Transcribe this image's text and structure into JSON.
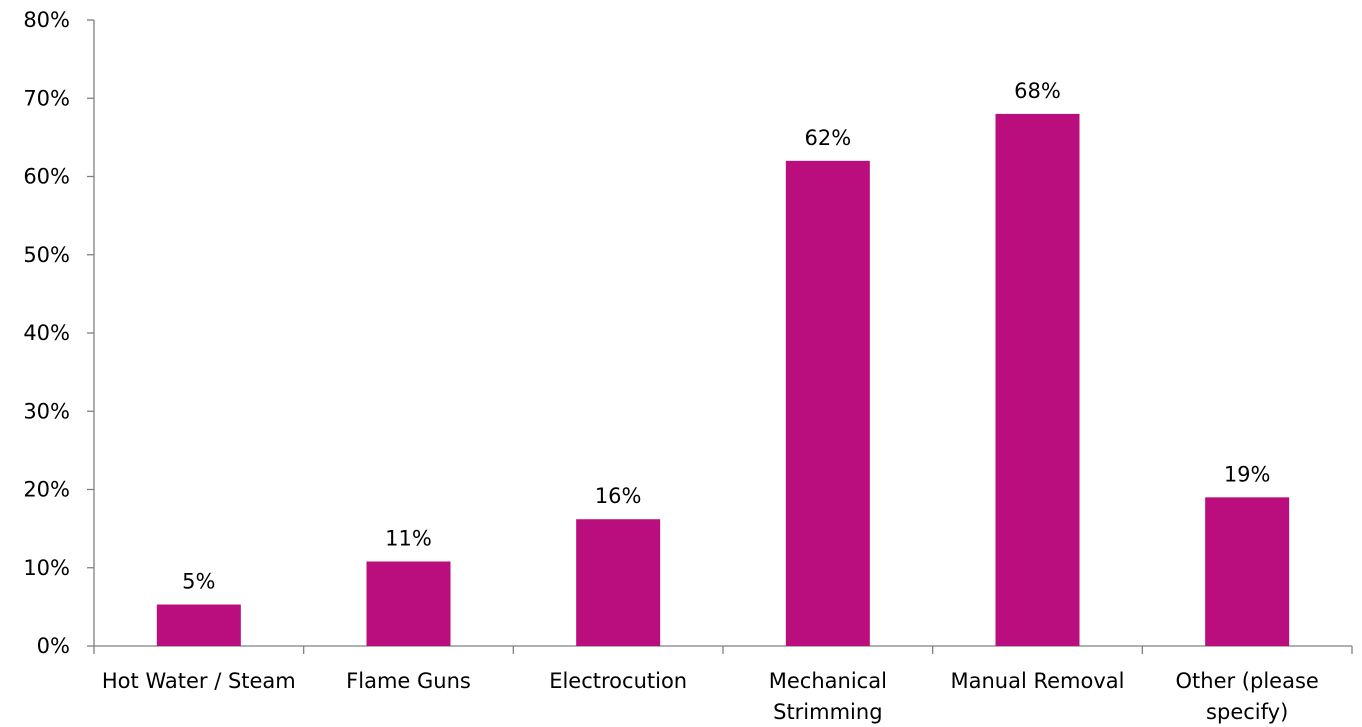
{
  "chart_data": {
    "type": "bar",
    "title": "",
    "xlabel": "",
    "ylabel": "",
    "ylim": [
      0,
      80
    ],
    "yticks": [
      "0%",
      "10%",
      "20%",
      "30%",
      "40%",
      "50%",
      "60%",
      "70%",
      "80%"
    ],
    "grid": false,
    "bar_color": "#BA0E7E",
    "categories": [
      [
        "Hot Water / Steam"
      ],
      [
        "Flame Guns"
      ],
      [
        "Electrocution"
      ],
      [
        "Mechanical",
        "Strimming"
      ],
      [
        "Manual Removal"
      ],
      [
        "Other (please",
        "specify)"
      ]
    ],
    "values": [
      5.3,
      10.8,
      16.2,
      62,
      68,
      19
    ],
    "data_labels": [
      "5%",
      "11%",
      "16%",
      "62%",
      "68%",
      "19%"
    ]
  }
}
